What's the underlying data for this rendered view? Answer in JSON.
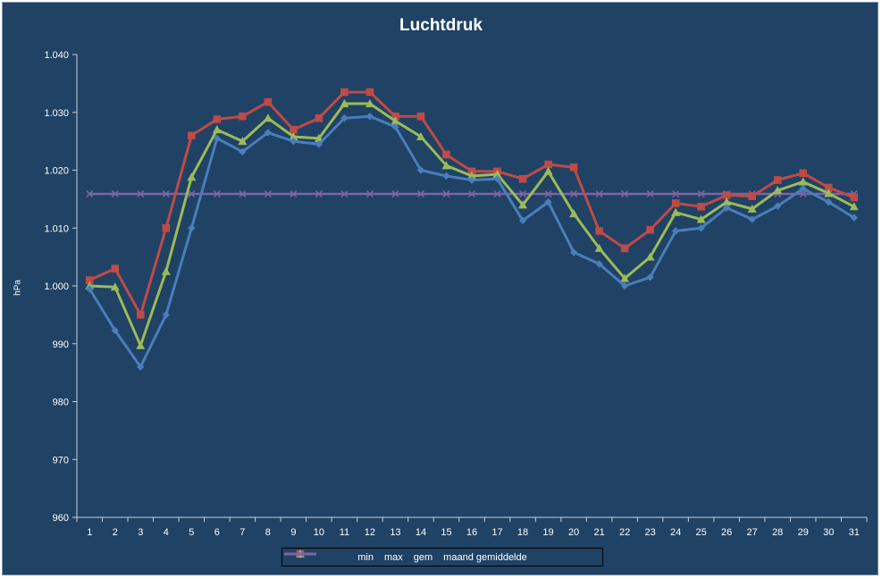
{
  "chart_data": {
    "type": "line",
    "title": "Luchtdruk",
    "ylabel": "hPa",
    "xlabel": "",
    "ylim": [
      960,
      1040
    ],
    "yticks": [
      960,
      970,
      980,
      990,
      1000,
      1010,
      1020,
      1030,
      1040
    ],
    "ytick_labels": [
      "960",
      "970",
      "980",
      "990",
      "1.000",
      "1.010",
      "1.020",
      "1.030",
      "1.040"
    ],
    "categories": [
      "1",
      "2",
      "3",
      "4",
      "5",
      "6",
      "7",
      "8",
      "9",
      "10",
      "11",
      "12",
      "13",
      "14",
      "15",
      "16",
      "17",
      "18",
      "19",
      "20",
      "21",
      "22",
      "23",
      "24",
      "25",
      "26",
      "27",
      "28",
      "29",
      "30",
      "31"
    ],
    "grid": false,
    "legend_position": "bottom",
    "series": [
      {
        "name": "min",
        "color": "#4a7ebb",
        "marker": "diamond",
        "values": [
          999.5,
          992.3,
          986.0,
          995.0,
          1010.0,
          1025.5,
          1023.2,
          1026.5,
          1025.0,
          1024.5,
          1029.0,
          1029.3,
          1027.5,
          1020.0,
          1019.0,
          1018.3,
          1018.5,
          1011.3,
          1014.5,
          1005.8,
          1003.8,
          1000.0,
          1001.5,
          1009.5,
          1010.0,
          1013.5,
          1011.5,
          1013.8,
          1016.8,
          1014.5,
          1011.8
        ]
      },
      {
        "name": "max",
        "color": "#be4b48",
        "marker": "square",
        "values": [
          1001.0,
          1003.0,
          995.0,
          1010.0,
          1026.0,
          1028.8,
          1029.3,
          1031.8,
          1027.0,
          1029.0,
          1033.5,
          1033.5,
          1029.3,
          1029.3,
          1022.7,
          1019.8,
          1019.8,
          1018.5,
          1021.0,
          1020.5,
          1009.5,
          1006.5,
          1009.7,
          1014.3,
          1013.7,
          1015.7,
          1015.5,
          1018.3,
          1019.5,
          1017.0,
          1015.3
        ]
      },
      {
        "name": "gem",
        "color": "#9bbb59",
        "marker": "triangle",
        "values": [
          1000.0,
          999.8,
          989.7,
          1002.5,
          1018.8,
          1027.0,
          1025.0,
          1029.0,
          1025.8,
          1025.5,
          1031.5,
          1031.5,
          1028.5,
          1025.8,
          1020.8,
          1019.0,
          1019.3,
          1014.0,
          1019.8,
          1012.5,
          1006.5,
          1001.3,
          1005.0,
          1012.7,
          1011.5,
          1014.5,
          1013.3,
          1016.5,
          1018.0,
          1016.0,
          1013.7
        ]
      },
      {
        "name": "maand gemiddelde",
        "color": "#8064a2",
        "marker": "x",
        "values": [
          1015.9,
          1015.9,
          1015.9,
          1015.9,
          1015.9,
          1015.9,
          1015.9,
          1015.9,
          1015.9,
          1015.9,
          1015.9,
          1015.9,
          1015.9,
          1015.9,
          1015.9,
          1015.9,
          1015.9,
          1015.9,
          1015.9,
          1015.9,
          1015.9,
          1015.9,
          1015.9,
          1015.9,
          1015.9,
          1015.9,
          1015.9,
          1015.9,
          1015.9,
          1015.9,
          1015.9
        ]
      }
    ]
  }
}
